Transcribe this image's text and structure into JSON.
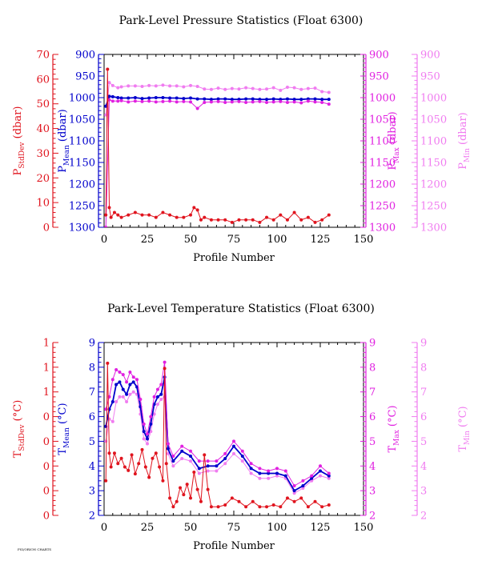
{
  "chart_data": [
    {
      "type": "line",
      "title": "Park-Level Pressure Statistics (Float 6300)",
      "xlabel": "Profile Number",
      "xlim": [
        0,
        150
      ],
      "xticks": [
        "0",
        "25",
        "50",
        "75",
        "100",
        "125",
        "150"
      ],
      "axes": [
        {
          "key": "sd",
          "label_main": "P",
          "label_sub": "StdDev",
          "label_unit": " (dbar)",
          "color": "#e0141e",
          "ticks": [
            "0",
            "10",
            "20",
            "30",
            "40",
            "50",
            "60",
            "70"
          ]
        },
        {
          "key": "mean",
          "label_main": "P",
          "label_sub": "Mean",
          "label_unit": " (dbar)",
          "color": "#0000cc",
          "ticks": [
            "900",
            "950",
            "1000",
            "1050",
            "1100",
            "1150",
            "1200",
            "1250",
            "1300"
          ]
        },
        {
          "key": "max",
          "label_main": "P",
          "label_sub": "Max",
          "label_unit": " (dbar)",
          "color": "#e020e0",
          "ticks": [
            "900",
            "950",
            "1000",
            "1050",
            "1100",
            "1150",
            "1200",
            "1250",
            "1300"
          ]
        },
        {
          "key": "min",
          "label_main": "P",
          "label_sub": "Min",
          "label_unit": " (dbar)",
          "color": "#f07cf0",
          "ticks": [
            "900",
            "950",
            "1000",
            "1050",
            "1100",
            "1150",
            "1200",
            "1250",
            "1300"
          ]
        }
      ],
      "series": [
        {
          "axis": "min",
          "color": "#f07cf0",
          "x": [
            1,
            3,
            5,
            8,
            10,
            14,
            18,
            22,
            26,
            30,
            34,
            38,
            42,
            46,
            50,
            54,
            58,
            62,
            66,
            70,
            74,
            78,
            82,
            86,
            90,
            94,
            98,
            102,
            106,
            110,
            114,
            118,
            122,
            126,
            130
          ],
          "y": [
            1040,
            965,
            972,
            977,
            975,
            973,
            973,
            974,
            972,
            973,
            971,
            973,
            973,
            975,
            972,
            974,
            980,
            981,
            978,
            981,
            979,
            980,
            977,
            979,
            981,
            980,
            977,
            983,
            976,
            977,
            981,
            979,
            978,
            986,
            988
          ]
        },
        {
          "axis": "mean",
          "color": "#0000cc",
          "x": [
            1,
            3,
            5,
            8,
            10,
            14,
            18,
            22,
            26,
            30,
            34,
            38,
            42,
            46,
            50,
            54,
            58,
            62,
            66,
            70,
            74,
            78,
            82,
            86,
            90,
            94,
            98,
            102,
            106,
            110,
            114,
            118,
            122,
            126,
            130
          ],
          "y": [
            1020,
            997,
            998,
            1000,
            1001,
            1001,
            1000,
            1002,
            1001,
            1000,
            1000,
            1001,
            1001,
            1002,
            1001,
            1003,
            1003,
            1004,
            1003,
            1003,
            1004,
            1004,
            1003,
            1003,
            1004,
            1004,
            1003,
            1004,
            1003,
            1004,
            1004,
            1003,
            1003,
            1004,
            1004
          ]
        },
        {
          "axis": "max",
          "color": "#e020e0",
          "x": [
            1,
            3,
            5,
            8,
            10,
            14,
            18,
            22,
            26,
            30,
            34,
            38,
            42,
            46,
            50,
            54,
            58,
            62,
            66,
            70,
            74,
            78,
            82,
            86,
            90,
            94,
            98,
            102,
            106,
            110,
            114,
            118,
            122,
            126,
            130
          ],
          "y": [
            1300,
            1005,
            1008,
            1008,
            1007,
            1010,
            1008,
            1009,
            1008,
            1010,
            1009,
            1008,
            1010,
            1009,
            1010,
            1025,
            1011,
            1010,
            1009,
            1011,
            1010,
            1009,
            1011,
            1010,
            1009,
            1011,
            1010,
            1009,
            1011,
            1010,
            1012,
            1008,
            1010,
            1011,
            1015
          ]
        },
        {
          "axis": "sd",
          "color": "#e0141e",
          "x": [
            1,
            2,
            3,
            4,
            6,
            8,
            10,
            14,
            18,
            22,
            26,
            30,
            34,
            38,
            42,
            46,
            50,
            52,
            54,
            56,
            58,
            62,
            66,
            70,
            74,
            78,
            82,
            86,
            90,
            94,
            98,
            102,
            106,
            110,
            114,
            118,
            122,
            126,
            130
          ],
          "y": [
            5,
            64,
            8,
            4,
            6,
            5,
            4,
            5,
            6,
            5,
            5,
            4,
            6,
            5,
            4,
            4,
            5,
            8,
            7,
            3,
            4,
            3,
            3,
            3,
            2,
            3,
            3,
            3,
            2,
            4,
            3,
            5,
            3,
            6,
            3,
            4,
            2,
            3,
            5
          ]
        }
      ]
    },
    {
      "type": "line",
      "title": "Park-Level Temperature Statistics (Float 6300)",
      "xlabel": "Profile Number",
      "xlim": [
        0,
        150
      ],
      "xticks": [
        "0",
        "25",
        "50",
        "75",
        "100",
        "125",
        "150"
      ],
      "axes": [
        {
          "key": "sd",
          "label_main": "T",
          "label_sub": "StdDev",
          "label_unit": " (°C)",
          "color": "#e0141e",
          "ticks": [
            "0",
            "0",
            "0",
            "0",
            "0",
            "1",
            "1",
            "1"
          ]
        },
        {
          "key": "mean",
          "label_main": "T",
          "label_sub": "Mean",
          "label_unit": " (°C)",
          "color": "#0000cc",
          "ticks": [
            "2",
            "3",
            "4",
            "5",
            "6",
            "7",
            "8",
            "9"
          ]
        },
        {
          "key": "max",
          "label_main": "T",
          "label_sub": "Max",
          "label_unit": " (°C)",
          "color": "#e020e0",
          "ticks": [
            "2",
            "3",
            "4",
            "5",
            "6",
            "7",
            "8",
            "9"
          ]
        },
        {
          "key": "min",
          "label_main": "T",
          "label_sub": "Min",
          "label_unit": " (°C)",
          "color": "#f07cf0",
          "ticks": [
            "2",
            "3",
            "4",
            "5",
            "6",
            "7",
            "8",
            "9"
          ]
        }
      ],
      "series": [
        {
          "axis": "min",
          "color": "#f07cf0",
          "x": [
            1,
            3,
            5,
            7,
            9,
            11,
            13,
            15,
            17,
            19,
            21,
            23,
            25,
            27,
            29,
            31,
            33,
            35,
            37,
            40,
            45,
            50,
            55,
            60,
            65,
            70,
            75,
            80,
            85,
            90,
            95,
            100,
            105,
            110,
            115,
            120,
            125,
            130
          ],
          "y": [
            5.0,
            5.9,
            5.8,
            6.6,
            6.8,
            6.8,
            6.6,
            6.9,
            7.0,
            6.9,
            6.1,
            5.1,
            4.9,
            5.4,
            6.1,
            6.5,
            6.7,
            6.8,
            4.5,
            4.0,
            4.3,
            4.2,
            3.7,
            3.8,
            3.8,
            4.1,
            4.5,
            4.2,
            3.7,
            3.5,
            3.5,
            3.6,
            3.5,
            2.9,
            3.1,
            3.4,
            3.6,
            3.5
          ]
        },
        {
          "axis": "mean",
          "color": "#0000cc",
          "x": [
            1,
            3,
            5,
            7,
            9,
            11,
            13,
            15,
            17,
            19,
            21,
            23,
            25,
            27,
            29,
            31,
            33,
            35,
            37,
            40,
            45,
            50,
            55,
            60,
            65,
            70,
            75,
            80,
            85,
            90,
            95,
            100,
            105,
            110,
            115,
            120,
            125,
            130
          ],
          "y": [
            5.6,
            6.3,
            6.6,
            7.3,
            7.4,
            7.1,
            6.9,
            7.3,
            7.4,
            7.2,
            6.4,
            5.4,
            5.1,
            5.7,
            6.5,
            6.8,
            6.9,
            7.6,
            4.7,
            4.2,
            4.6,
            4.4,
            3.9,
            4.0,
            4.0,
            4.3,
            4.8,
            4.4,
            3.9,
            3.7,
            3.7,
            3.7,
            3.6,
            3.0,
            3.2,
            3.5,
            3.8,
            3.6
          ]
        },
        {
          "axis": "max",
          "color": "#e020e0",
          "x": [
            1,
            3,
            5,
            7,
            9,
            11,
            13,
            15,
            17,
            19,
            21,
            23,
            25,
            27,
            29,
            31,
            33,
            35,
            37,
            40,
            45,
            50,
            55,
            60,
            65,
            70,
            75,
            80,
            85,
            90,
            95,
            100,
            105,
            110,
            115,
            120,
            125,
            130
          ],
          "y": [
            6.3,
            6.8,
            7.5,
            7.9,
            7.8,
            7.7,
            7.4,
            7.8,
            7.6,
            7.5,
            6.7,
            5.7,
            5.3,
            6.0,
            6.8,
            7.1,
            7.3,
            8.2,
            4.9,
            4.4,
            4.8,
            4.6,
            4.2,
            4.2,
            4.2,
            4.5,
            5.0,
            4.6,
            4.1,
            3.9,
            3.8,
            3.9,
            3.8,
            3.2,
            3.4,
            3.6,
            4.0,
            3.7
          ]
        },
        {
          "axis": "sd",
          "color": "#e0141e",
          "x": [
            1,
            2,
            3,
            4,
            6,
            8,
            10,
            12,
            14,
            16,
            18,
            20,
            22,
            24,
            26,
            28,
            30,
            32,
            34,
            35,
            36,
            38,
            40,
            42,
            44,
            46,
            48,
            50,
            52,
            54,
            56,
            58,
            60,
            62,
            66,
            70,
            74,
            78,
            82,
            86,
            90,
            94,
            98,
            102,
            106,
            110,
            114,
            118,
            122,
            126,
            130
          ],
          "y": [
            0.2,
            0.88,
            0.36,
            0.28,
            0.36,
            0.3,
            0.33,
            0.28,
            0.26,
            0.35,
            0.24,
            0.3,
            0.38,
            0.28,
            0.22,
            0.33,
            0.36,
            0.28,
            0.2,
            0.85,
            0.3,
            0.1,
            0.05,
            0.08,
            0.16,
            0.12,
            0.18,
            0.1,
            0.25,
            0.15,
            0.08,
            0.35,
            0.15,
            0.05,
            0.05,
            0.06,
            0.1,
            0.08,
            0.05,
            0.08,
            0.05,
            0.05,
            0.06,
            0.05,
            0.1,
            0.08,
            0.1,
            0.05,
            0.08,
            0.05,
            0.06
          ]
        }
      ]
    }
  ],
  "footer": {
    "tag": "FSI/ORION CHARTS"
  }
}
